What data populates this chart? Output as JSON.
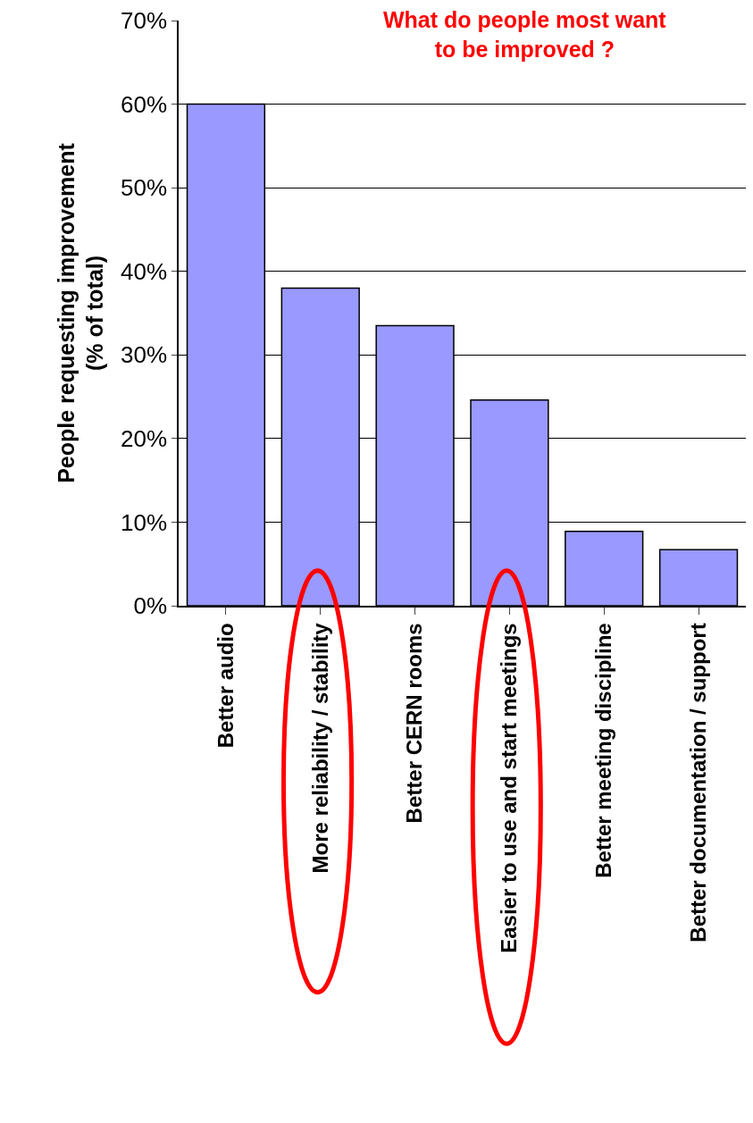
{
  "chart_data": {
    "type": "bar",
    "title": "What do people most want\nto be improved ?",
    "ylabel": "People requesting improvement\n(% of total)",
    "categories": [
      "Better audio",
      "More reliability / stability",
      "Better CERN rooms",
      "Easier to use and start meetings",
      "Better meeting discipline",
      "Better documentation / support"
    ],
    "values": [
      60,
      38,
      33.5,
      24.6,
      8.9,
      6.7
    ],
    "color": "#9999ff",
    "ylim": [
      0,
      70
    ],
    "yticks": [
      {
        "value": 0,
        "label": "0%"
      },
      {
        "value": 10,
        "label": "10%"
      },
      {
        "value": 20,
        "label": "20%"
      },
      {
        "value": 30,
        "label": "30%"
      },
      {
        "value": 40,
        "label": "40%"
      },
      {
        "value": 50,
        "label": "50%"
      },
      {
        "value": 60,
        "label": "60%"
      },
      {
        "value": 70,
        "label": "70%"
      }
    ],
    "grid": "y"
  }
}
